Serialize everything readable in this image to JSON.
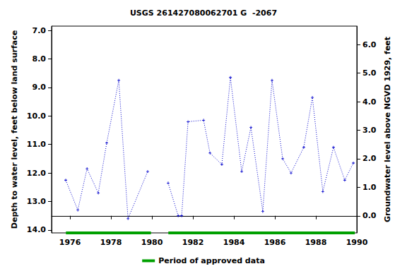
{
  "chart_data": {
    "type": "line",
    "title": "USGS 261427080062701 G  -2067",
    "x_label": null,
    "y_label": "Depth to water level, feet below land surface",
    "y2_label": "Groundwater level above NGVD 1929, feet",
    "xlim": [
      1975.1,
      1990
    ],
    "xticks": [
      1976,
      1978,
      1980,
      1982,
      1984,
      1986,
      1988,
      1990
    ],
    "ylim": [
      6.85,
      14.1
    ],
    "yticks": [
      {
        "value": 7,
        "label": "7.0"
      },
      {
        "value": 8,
        "label": "8.0"
      },
      {
        "value": 9,
        "label": "9.0"
      },
      {
        "value": 10,
        "label": "10.0"
      },
      {
        "value": 11,
        "label": "11.0"
      },
      {
        "value": 12,
        "label": "12.0"
      },
      {
        "value": 13,
        "label": "13.0"
      },
      {
        "value": 14,
        "label": "14.0"
      }
    ],
    "y2lim": [
      -0.6,
      6.65
    ],
    "y2ticks": [
      {
        "value": 0,
        "label": "0.0"
      },
      {
        "value": 1,
        "label": "1.0"
      },
      {
        "value": 2,
        "label": "2.0"
      },
      {
        "value": 3,
        "label": "3.0"
      },
      {
        "value": 4,
        "label": "4.0"
      },
      {
        "value": 5,
        "label": "5.0"
      },
      {
        "value": 6,
        "label": "6.0"
      }
    ],
    "grid": false,
    "legend": "bottom",
    "series": [
      {
        "name": "Depth to water level",
        "color": "#0000cc",
        "marker": "plus",
        "line_style": "dotted",
        "x": [
          1975.79,
          1976.38,
          1976.83,
          1977.38,
          1977.79,
          1978.38,
          1978.83,
          1979.79,
          null,
          1980.79,
          1981.28,
          1981.45,
          1981.76,
          1982.52,
          1982.83,
          1983.41,
          1983.83,
          1984.38,
          1984.83,
          1985.41,
          1985.86,
          1986.38,
          1986.79,
          1987.41,
          1987.83,
          1988.34,
          1988.86,
          1989.41,
          1989.83
        ],
        "values": [
          12.25,
          13.3,
          11.85,
          12.7,
          10.95,
          8.75,
          13.6,
          11.95,
          null,
          12.35,
          13.5,
          13.5,
          10.2,
          10.15,
          11.3,
          11.7,
          8.65,
          11.95,
          10.4,
          13.35,
          8.75,
          11.5,
          12.0,
          11.1,
          9.35,
          12.65,
          11.1,
          12.25,
          11.65
        ]
      }
    ],
    "approved_periods": {
      "name": "Period of approved data",
      "color": "#00a000",
      "periods": [
        [
          1975.8,
          1979.95
        ],
        [
          1980.8,
          1989.9
        ]
      ]
    }
  }
}
